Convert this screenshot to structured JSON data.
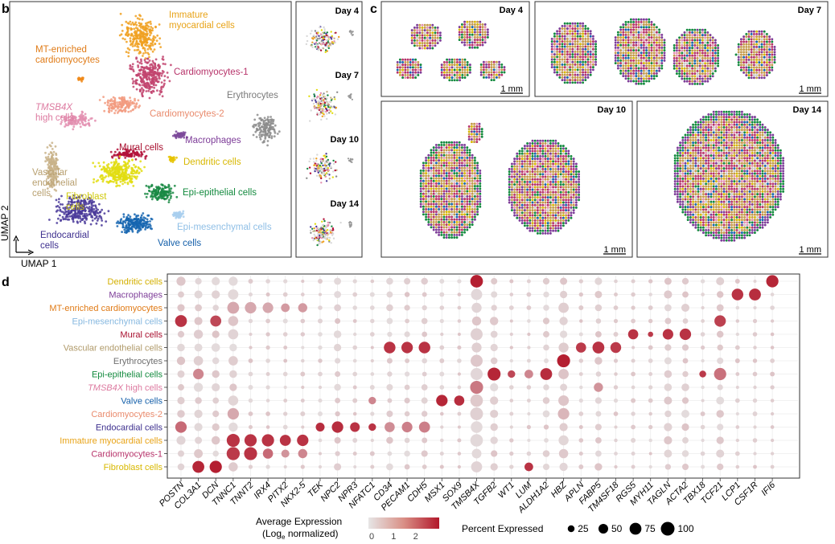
{
  "panel_letters": {
    "b": "b",
    "c": "c",
    "d": "d"
  },
  "umap": {
    "x_label": "UMAP 1",
    "y_label": "UMAP 2",
    "clusters": [
      {
        "label": "Immature\nmyocardial cells",
        "color": "#f0a020",
        "label_color": "#e8a317"
      },
      {
        "label": "MT-enriched\ncardiomyocytes",
        "color": "#f08a1a",
        "label_color": "#e07b17"
      },
      {
        "label": "Cardiomyocytes-1",
        "color": "#c2446e",
        "label_color": "#b7336a"
      },
      {
        "label": "Erythrocytes",
        "color": "#8c8c8c",
        "label_color": "#7a7a7a"
      },
      {
        "label": "TMSB4X\nhigh cells",
        "color": "#e38fb0",
        "label_color": "#dd7aa0"
      },
      {
        "label": "Cardiomyocytes-2",
        "color": "#f29b80",
        "label_color": "#e98a6c"
      },
      {
        "label": "Macrophages",
        "color": "#7d4a9a",
        "label_color": "#7d3c98"
      },
      {
        "label": "Mural cells",
        "color": "#b3123a",
        "label_color": "#a8102f"
      },
      {
        "label": "Dendritic cells",
        "color": "#e6c300",
        "label_color": "#d8b800"
      },
      {
        "label": "Vascular\nendothelial\ncells",
        "color": "#c9b38a",
        "label_color": "#b8a070"
      },
      {
        "label": "Fibroblast\ncells",
        "color": "#e2dd10",
        "label_color": "#cfc80a"
      },
      {
        "label": "Epi-epithelial cells",
        "color": "#1a8a44",
        "label_color": "#138a3e"
      },
      {
        "label": "Epi-mesenchymal cells",
        "color": "#a9cfee",
        "label_color": "#8fbfe6"
      },
      {
        "label": "Endocardial\ncells",
        "color": "#4a3a9a",
        "label_color": "#3d2f8e"
      },
      {
        "label": "Valve cells",
        "color": "#1565b0",
        "label_color": "#1560aa"
      }
    ]
  },
  "mini_days": [
    "Day 4",
    "Day 7",
    "Day 10",
    "Day 14"
  ],
  "spatial": {
    "days": [
      "Day 4",
      "Day 7",
      "Day 10",
      "Day 14"
    ],
    "scale_label": "1 mm"
  },
  "chart_data": {
    "type": "dotplot",
    "title": "",
    "genes": [
      "POSTN",
      "COL3A1",
      "DCN",
      "TNNC1",
      "TNNT2",
      "IRX4",
      "PITX2",
      "NKX2-5",
      "TEK",
      "NPC2",
      "NPR3",
      "NFATC1",
      "CD34",
      "PECAM1",
      "CDH5",
      "MSX1",
      "SOX9",
      "TMSB4X",
      "TGFB2",
      "WT1",
      "LUM",
      "ALDH1A2",
      "HBZ",
      "APLN",
      "FABP5",
      "TM4SF18",
      "RGS5",
      "MYH11",
      "TAGLN",
      "ACTA2",
      "TBX18",
      "TCF21",
      "LCP1",
      "CSF1R",
      "IFI6"
    ],
    "cell_types": [
      {
        "name": "Dendritic cells",
        "color": "#d4b000"
      },
      {
        "name": "Macrophages",
        "color": "#7d3c98"
      },
      {
        "name": "MT-enriched cardiomyocytes",
        "color": "#e07b17"
      },
      {
        "name": "Epi-mesenchymal cells",
        "color": "#86b8e0"
      },
      {
        "name": "Mural cells",
        "color": "#a8102f"
      },
      {
        "name": "Vascular endothelial cells",
        "color": "#b09a6a"
      },
      {
        "name": "Erythrocytes",
        "color": "#6f6f6f"
      },
      {
        "name": "Epi-epithelial cells",
        "color": "#138a3e"
      },
      {
        "name": "TMSB4X high cells",
        "color": "#dd7aa0"
      },
      {
        "name": "Valve cells",
        "color": "#1560aa"
      },
      {
        "name": "Cardiomyocytes-2",
        "color": "#e98a6c"
      },
      {
        "name": "Endocardial cells",
        "color": "#3d2f8e"
      },
      {
        "name": "Immature myocardial cells",
        "color": "#e8a317"
      },
      {
        "name": "Cardiomyocytes-1",
        "color": "#b7336a"
      },
      {
        "name": "Fibroblast cells",
        "color": "#d8b800"
      }
    ],
    "high_expression": [
      {
        "cell": "Dendritic cells",
        "gene": "TMSB4X",
        "avg": 2.9,
        "pct": 85
      },
      {
        "cell": "Dendritic cells",
        "gene": "IFI6",
        "avg": 2.8,
        "pct": 80
      },
      {
        "cell": "Macrophages",
        "gene": "LCP1",
        "avg": 2.6,
        "pct": 72
      },
      {
        "cell": "Macrophages",
        "gene": "CSF1R",
        "avg": 2.7,
        "pct": 75
      },
      {
        "cell": "Epi-mesenchymal cells",
        "gene": "POSTN",
        "avg": 2.6,
        "pct": 75
      },
      {
        "cell": "Epi-mesenchymal cells",
        "gene": "DCN",
        "avg": 2.3,
        "pct": 65
      },
      {
        "cell": "Epi-mesenchymal cells",
        "gene": "TCF21",
        "avg": 2.4,
        "pct": 70
      },
      {
        "cell": "Mural cells",
        "gene": "RGS5",
        "avg": 2.6,
        "pct": 55
      },
      {
        "cell": "Mural cells",
        "gene": "MYH11",
        "avg": 2.5,
        "pct": 15
      },
      {
        "cell": "Mural cells",
        "gene": "TAGLN",
        "avg": 2.6,
        "pct": 60
      },
      {
        "cell": "Mural cells",
        "gene": "ACTA2",
        "avg": 2.6,
        "pct": 70
      },
      {
        "cell": "Vascular endothelial cells",
        "gene": "CD34",
        "avg": 2.6,
        "pct": 72
      },
      {
        "cell": "Vascular endothelial cells",
        "gene": "PECAM1",
        "avg": 2.6,
        "pct": 70
      },
      {
        "cell": "Vascular endothelial cells",
        "gene": "CDH5",
        "avg": 2.6,
        "pct": 72
      },
      {
        "cell": "Vascular endothelial cells",
        "gene": "APLN",
        "avg": 2.5,
        "pct": 55
      },
      {
        "cell": "Vascular endothelial cells",
        "gene": "FABP5",
        "avg": 2.6,
        "pct": 75
      },
      {
        "cell": "Vascular endothelial cells",
        "gene": "TM4SF18",
        "avg": 2.5,
        "pct": 62
      },
      {
        "cell": "Erythrocytes",
        "gene": "HBZ",
        "avg": 2.9,
        "pct": 90
      },
      {
        "cell": "Epi-epithelial cells",
        "gene": "COL3A1",
        "avg": 1.4,
        "pct": 60
      },
      {
        "cell": "Epi-epithelial cells",
        "gene": "TGFB2",
        "avg": 2.8,
        "pct": 90
      },
      {
        "cell": "Epi-epithelial cells",
        "gene": "WT1",
        "avg": 2.3,
        "pct": 30
      },
      {
        "cell": "Epi-epithelial cells",
        "gene": "LUM",
        "avg": 1.4,
        "pct": 40
      },
      {
        "cell": "Epi-epithelial cells",
        "gene": "ALDH1A2",
        "avg": 2.7,
        "pct": 75
      },
      {
        "cell": "Epi-epithelial cells",
        "gene": "TBX18",
        "avg": 2.5,
        "pct": 25
      },
      {
        "cell": "Epi-epithelial cells",
        "gene": "TCF21",
        "avg": 1.7,
        "pct": 80
      },
      {
        "cell": "TMSB4X high cells",
        "gene": "TMSB4X",
        "avg": 1.6,
        "pct": 90
      },
      {
        "cell": "TMSB4X high cells",
        "gene": "FABP5",
        "avg": 1.2,
        "pct": 45
      },
      {
        "cell": "Valve cells",
        "gene": "MSX1",
        "avg": 2.8,
        "pct": 70
      },
      {
        "cell": "Valve cells",
        "gene": "SOX9",
        "avg": 2.7,
        "pct": 55
      },
      {
        "cell": "Valve cells",
        "gene": "NFATC1",
        "avg": 1.4,
        "pct": 30
      },
      {
        "cell": "Endocardial cells",
        "gene": "POSTN",
        "avg": 1.8,
        "pct": 70
      },
      {
        "cell": "Endocardial cells",
        "gene": "TEK",
        "avg": 2.7,
        "pct": 42
      },
      {
        "cell": "Endocardial cells",
        "gene": "NPC2",
        "avg": 2.7,
        "pct": 70
      },
      {
        "cell": "Endocardial cells",
        "gene": "NPR3",
        "avg": 2.6,
        "pct": 50
      },
      {
        "cell": "Endocardial cells",
        "gene": "NFATC1",
        "avg": 2.6,
        "pct": 30
      },
      {
        "cell": "Endocardial cells",
        "gene": "CD34",
        "avg": 1.3,
        "pct": 55
      },
      {
        "cell": "Endocardial cells",
        "gene": "PECAM1",
        "avg": 1.5,
        "pct": 60
      },
      {
        "cell": "Endocardial cells",
        "gene": "CDH5",
        "avg": 1.5,
        "pct": 65
      },
      {
        "cell": "Immature myocardial cells",
        "gene": "TNNC1",
        "avg": 2.6,
        "pct": 90
      },
      {
        "cell": "Immature myocardial cells",
        "gene": "TNNT2",
        "avg": 2.6,
        "pct": 80
      },
      {
        "cell": "Immature myocardial cells",
        "gene": "IRX4",
        "avg": 2.6,
        "pct": 80
      },
      {
        "cell": "Immature myocardial cells",
        "gene": "PITX2",
        "avg": 2.6,
        "pct": 65
      },
      {
        "cell": "Immature myocardial cells",
        "gene": "NKX2-5",
        "avg": 2.6,
        "pct": 70
      },
      {
        "cell": "Cardiomyocytes-1",
        "gene": "TNNC1",
        "avg": 2.5,
        "pct": 92
      },
      {
        "cell": "Cardiomyocytes-1",
        "gene": "TNNT2",
        "avg": 2.6,
        "pct": 90
      },
      {
        "cell": "Cardiomyocytes-1",
        "gene": "IRX4",
        "avg": 1.8,
        "pct": 55
      },
      {
        "cell": "Cardiomyocytes-1",
        "gene": "PITX2",
        "avg": 1.2,
        "pct": 35
      },
      {
        "cell": "Cardiomyocytes-1",
        "gene": "NKX2-5",
        "avg": 1.4,
        "pct": 45
      },
      {
        "cell": "Fibroblast cells",
        "gene": "COL3A1",
        "avg": 2.8,
        "pct": 75
      },
      {
        "cell": "Fibroblast cells",
        "gene": "DCN",
        "avg": 2.9,
        "pct": 80
      },
      {
        "cell": "Fibroblast cells",
        "gene": "LUM",
        "avg": 2.6,
        "pct": 40
      },
      {
        "cell": "MT-enriched cardiomyocytes",
        "gene": "TNNC1",
        "avg": 0.9,
        "pct": 75
      },
      {
        "cell": "MT-enriched cardiomyocytes",
        "gene": "TNNT2",
        "avg": 0.9,
        "pct": 70
      },
      {
        "cell": "MT-enriched cardiomyocytes",
        "gene": "IRX4",
        "avg": 0.9,
        "pct": 60
      },
      {
        "cell": "MT-enriched cardiomyocytes",
        "gene": "PITX2",
        "avg": 1.1,
        "pct": 40
      },
      {
        "cell": "MT-enriched cardiomyocytes",
        "gene": "NKX2-5",
        "avg": 1.1,
        "pct": 45
      },
      {
        "cell": "Cardiomyocytes-2",
        "gene": "TNNC1",
        "avg": 0.9,
        "pct": 70
      },
      {
        "cell": "Cardiomyocytes-2",
        "gene": "HBZ",
        "avg": 0.7,
        "pct": 70
      }
    ],
    "background_pct": {
      "TNNC1": 55,
      "TMSB4X": 90,
      "HBZ": 60,
      "POSTN": 45,
      "COL3A1": 45,
      "DCN": 40,
      "TGFB2": 40,
      "TAGLN": 35,
      "ACTA2": 35,
      "TCF21": 35,
      "FABP5": 30,
      "NPC2": 30,
      "CD34": 25,
      "PECAM1": 25,
      "CDH5": 25,
      "ALDH1A2": 25
    },
    "legend": {
      "color_title": "Average Expression",
      "color_subtitle": "(Log",
      "color_subscript": "e",
      "color_subtitle_end": " normalized)",
      "color_min": 0,
      "color_max": 3,
      "color_ticks": [
        "0",
        "1",
        "2"
      ],
      "low_color": "#e6e6e6",
      "high_color": "#b2182b",
      "size_title": "Percent Expressed",
      "size_values": [
        25,
        50,
        75,
        100
      ],
      "size_labels": [
        "25",
        "50",
        "75",
        "100"
      ]
    }
  }
}
